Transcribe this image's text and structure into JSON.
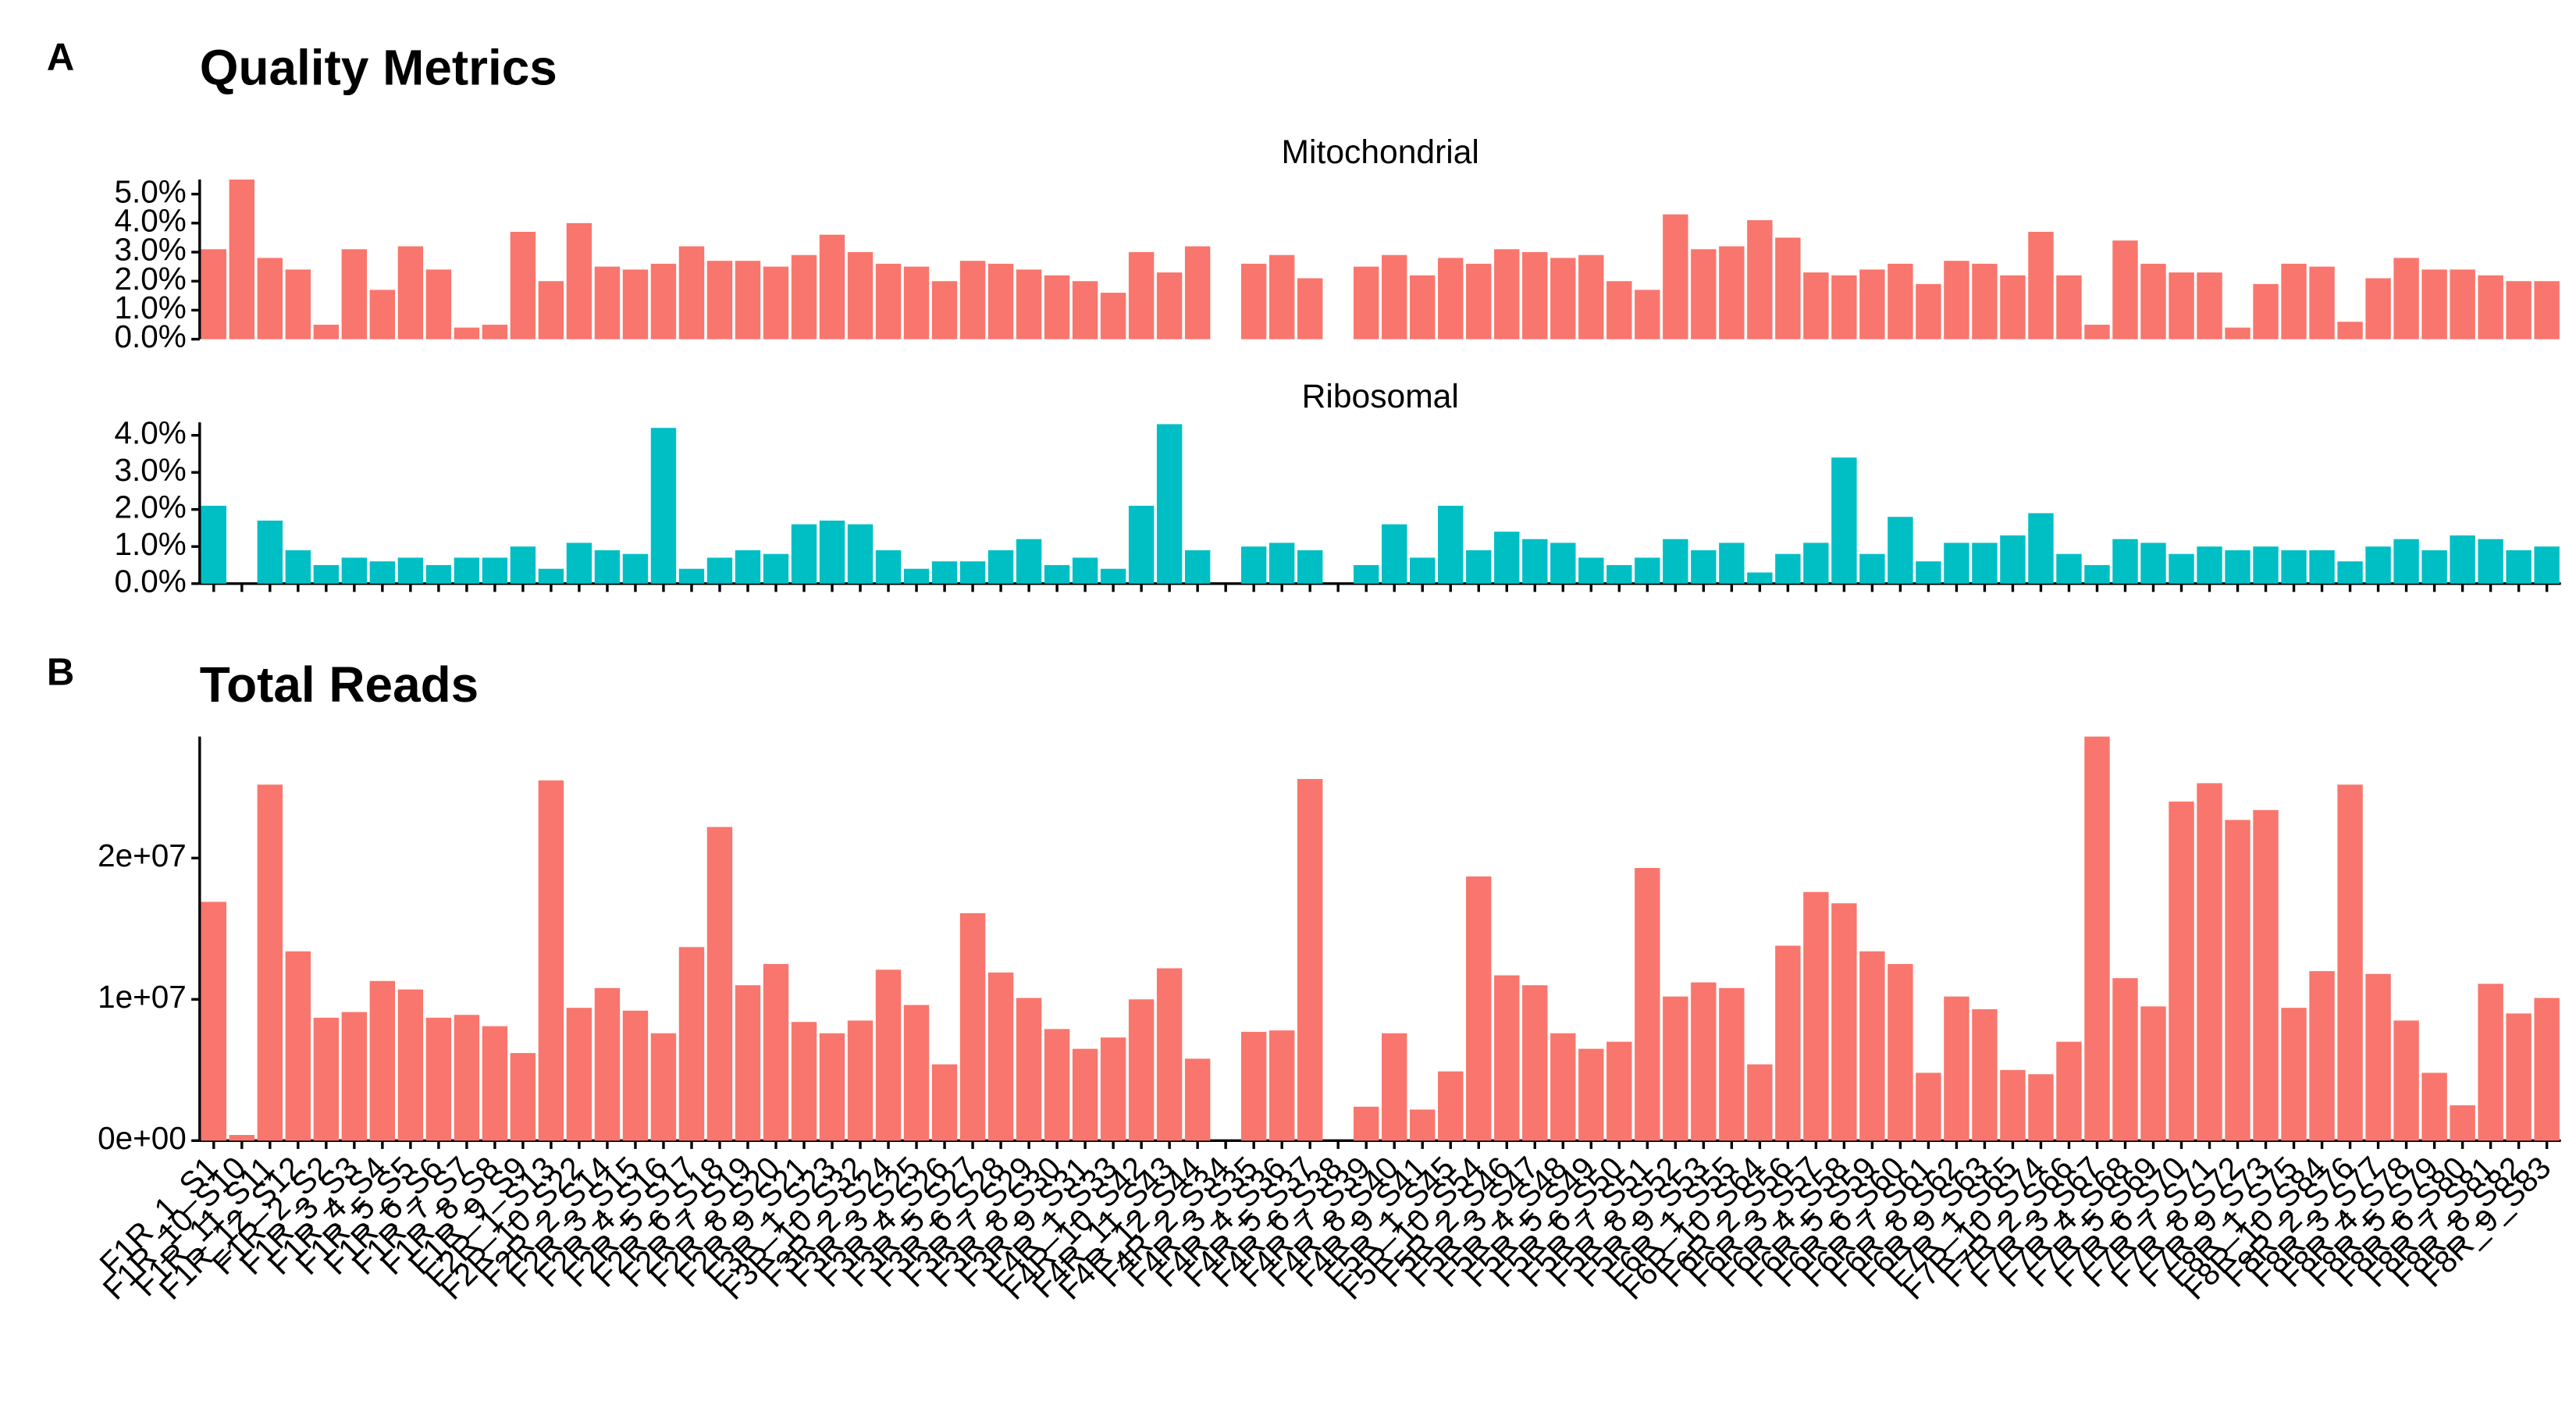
{
  "panel_tags": [
    "A",
    "B"
  ],
  "panel_titles": [
    "Quality Metrics",
    "Total Reads"
  ],
  "chart_data": [
    {
      "type": "bar",
      "title": "Mitochondrial",
      "color": "#F8766D",
      "values": [
        3.1,
        5.5,
        2.8,
        2.4,
        0.5,
        3.1,
        1.7,
        3.2,
        2.4,
        0.4,
        0.5,
        3.7,
        2.0,
        4.0,
        2.5,
        2.4,
        2.6,
        3.2,
        2.7,
        2.7,
        2.5,
        2.9,
        3.6,
        3.0,
        2.6,
        2.5,
        2.0,
        2.7,
        2.6,
        2.4,
        2.2,
        2.0,
        1.6,
        3.0,
        2.3,
        3.2,
        null,
        2.6,
        2.9,
        2.1,
        null,
        2.5,
        2.9,
        2.2,
        2.8,
        2.6,
        3.1,
        3.0,
        2.8,
        2.9,
        2.0,
        1.7,
        4.3,
        3.1,
        3.2,
        4.1,
        3.5,
        2.3,
        2.2,
        2.4,
        2.6,
        1.9,
        2.7,
        2.6,
        2.2,
        3.7,
        2.2,
        0.5,
        3.4,
        2.6,
        2.3,
        2.3,
        0.4,
        1.9,
        2.6,
        2.5,
        0.6,
        2.1,
        2.8,
        2.4,
        2.4,
        2.2,
        2.0,
        2.0
      ],
      "ylim": [
        0,
        5.5
      ],
      "yticks": [
        {
          "value": 0,
          "label": "0.0%"
        },
        {
          "value": 1,
          "label": "1.0%"
        },
        {
          "value": 2,
          "label": "2.0%"
        },
        {
          "value": 3,
          "label": "3.0%"
        },
        {
          "value": 4,
          "label": "4.0%"
        },
        {
          "value": 5,
          "label": "5.0%"
        }
      ]
    },
    {
      "type": "bar",
      "title": "Ribosomal",
      "color": "#00BFC4",
      "values": [
        2.1,
        0,
        1.7,
        0.9,
        0.5,
        0.7,
        0.6,
        0.7,
        0.5,
        0.7,
        0.7,
        1.0,
        0.4,
        1.1,
        0.9,
        0.8,
        4.2,
        0.4,
        0.7,
        0.9,
        0.8,
        1.6,
        1.7,
        1.6,
        0.9,
        0.4,
        0.6,
        0.6,
        0.9,
        1.2,
        0.5,
        0.7,
        0.4,
        2.1,
        4.3,
        0.9,
        null,
        1.0,
        1.1,
        0.9,
        null,
        0.5,
        1.6,
        0.7,
        2.1,
        0.9,
        1.4,
        1.2,
        1.1,
        0.7,
        0.5,
        0.7,
        1.2,
        0.9,
        1.1,
        0.3,
        0.8,
        1.1,
        3.4,
        0.8,
        1.8,
        0.6,
        1.1,
        1.1,
        1.3,
        1.9,
        0.8,
        0.5,
        1.2,
        1.1,
        0.8,
        1.0,
        0.9,
        1.0,
        0.9,
        0.9,
        0.6,
        1.0,
        1.2,
        0.9,
        1.3,
        1.2,
        0.9,
        1.0
      ],
      "ylim": [
        0,
        4.35
      ],
      "yticks": [
        {
          "value": 0,
          "label": "0.0%"
        },
        {
          "value": 1,
          "label": "1.0%"
        },
        {
          "value": 2,
          "label": "2.0%"
        },
        {
          "value": 3,
          "label": "3.0%"
        },
        {
          "value": 4,
          "label": "4.0%"
        }
      ]
    },
    {
      "type": "bar",
      "color": "#F8766D",
      "categories": [
        "F1R_1_S1",
        "F1R_10_S10",
        "F1R_11_S11",
        "F1R_12_S12",
        "F1R_2_S2",
        "F1R_3_S3",
        "F1R_4_S4",
        "F1R_5_S5",
        "F1R_6_S6",
        "F1R_7_S7",
        "F1R_8_S8",
        "F1R_9_S9",
        "F2R_1_S13",
        "F2R_10_S22",
        "F2R_2_S14",
        "F2R_3_S15",
        "F2R_4_S16",
        "F2R_5_S17",
        "F2R_6_S18",
        "F2R_7_S19",
        "F2R_8_S20",
        "F2R_9_S21",
        "F3R_1_S23",
        "F3R_10_S32",
        "F3R_2_S24",
        "F3R_3_S25",
        "F3R_4_S26",
        "F3R_5_S27",
        "F3R_6_S28",
        "F3R_7_S29",
        "F3R_8_S30",
        "F3R_9_S31",
        "F4R_1_S33",
        "F4R_10_S42",
        "F4R_11_S43",
        "F4R_12_S44",
        "F4R_2_S34",
        "F4R_3_S35",
        "F4R_4_S36",
        "F4R_5_S37",
        "F4R_6_S38",
        "F4R_7_S39",
        "F4R_8_S40",
        "F4R_9_S41",
        "F5R_1_S45",
        "F5R_10_S54",
        "F5R_2_S46",
        "F5R_3_S47",
        "F5R_4_S48",
        "F5R_5_S49",
        "F5R_6_S50",
        "F5R_7_S51",
        "F5R_8_S52",
        "F5R_9_S53",
        "F6R_1_S55",
        "F6R_10_S64",
        "F6R_2_S56",
        "F6R_3_S57",
        "F6R_4_S58",
        "F6R_5_S59",
        "F6R_6_S60",
        "F6R_7_S61",
        "F6R_8_S62",
        "F6R_9_S63",
        "F7R_1_S65",
        "F7R_10_S74",
        "F7R_2_S66",
        "F7R_3_S67",
        "F7R_4_S68",
        "F7R_5_S69",
        "F7R_6_S70",
        "F7R_7_S71",
        "F7R_8_S72",
        "F7R_9_S73",
        "F8R_1_S75",
        "F8R_10_S84",
        "F8R_2_S76",
        "F8R_3_S77",
        "F8R_4_S78",
        "F8R_5_S79",
        "F8R_6_S80",
        "F8R_7_S81",
        "F8R_8_S82",
        "F8R_9_S83"
      ],
      "values": [
        16900000,
        400000,
        25200000,
        13400000,
        8700000,
        9100000,
        11300000,
        10700000,
        8700000,
        8900000,
        8100000,
        6200000,
        25500000,
        9400000,
        10800000,
        9200000,
        7600000,
        13700000,
        22200000,
        11000000,
        12500000,
        8400000,
        7600000,
        8500000,
        12100000,
        9600000,
        5400000,
        16100000,
        11900000,
        10100000,
        7900000,
        6500000,
        7300000,
        10000000,
        12200000,
        5800000,
        null,
        7700000,
        7800000,
        25600000,
        null,
        2400000,
        7600000,
        2200000,
        4900000,
        18700000,
        11700000,
        11000000,
        7600000,
        6500000,
        7000000,
        19300000,
        10200000,
        11200000,
        10800000,
        5400000,
        13800000,
        17600000,
        16800000,
        13400000,
        12500000,
        4800000,
        10200000,
        9300000,
        5000000,
        4700000,
        7000000,
        28600000,
        11500000,
        9500000,
        24000000,
        25300000,
        22700000,
        23400000,
        9400000,
        12000000,
        25200000,
        11800000,
        8500000,
        4800000,
        2500000,
        11100000,
        9000000,
        10100000
      ],
      "ylim": [
        0,
        28600000
      ],
      "yticks": [
        {
          "value": 0,
          "label": "0e+00"
        },
        {
          "value": 10000000,
          "label": "1e+07"
        },
        {
          "value": 20000000,
          "label": "2e+07"
        }
      ]
    }
  ]
}
